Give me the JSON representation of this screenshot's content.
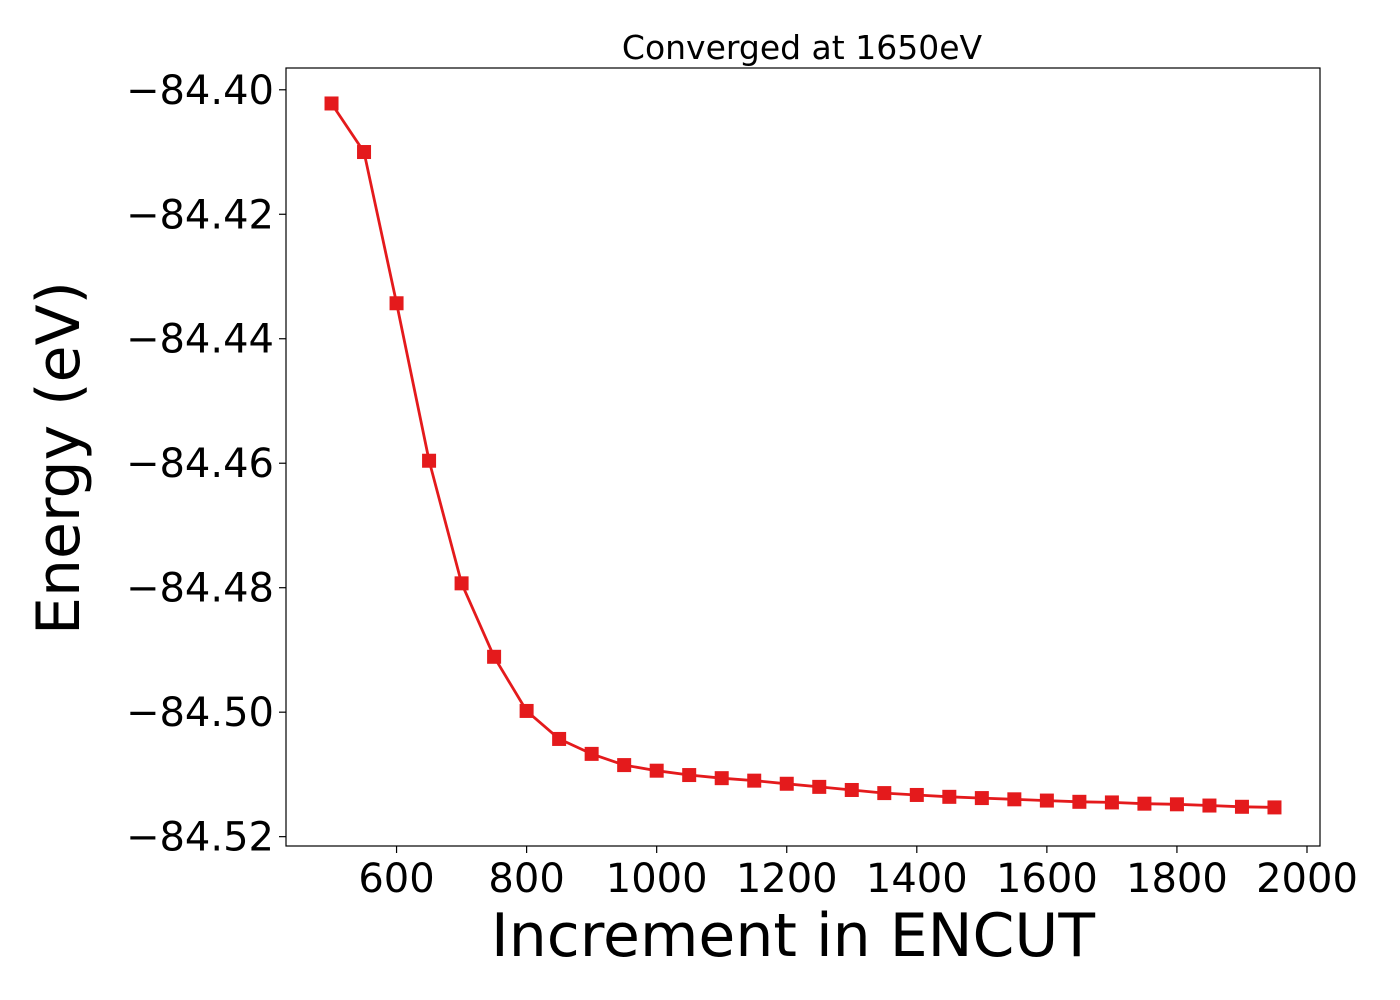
{
  "chart_data": {
    "type": "line",
    "title": "Converged at 1650eV",
    "xlabel": "Increment in ENCUT",
    "ylabel": "Energy (eV)",
    "xlim": [
      430,
      2020
    ],
    "ylim": [
      -84.5215,
      -84.3965
    ],
    "xticks": [
      600,
      800,
      1000,
      1200,
      1400,
      1600,
      1800,
      2000
    ],
    "xtick_labels": [
      "600",
      "800",
      "1000",
      "1200",
      "1400",
      "1600",
      "1800",
      "2000"
    ],
    "yticks": [
      -84.4,
      -84.42,
      -84.44,
      -84.46,
      -84.48,
      -84.5,
      -84.52
    ],
    "ytick_labels": [
      "−84.40",
      "−84.42",
      "−84.44",
      "−84.46",
      "−84.48",
      "−84.50",
      "−84.52"
    ],
    "grid": false,
    "series": [
      {
        "color": "#e41a1c",
        "marker": "square",
        "x": [
          500,
          550,
          600,
          650,
          700,
          750,
          800,
          850,
          900,
          950,
          1000,
          1050,
          1100,
          1150,
          1200,
          1250,
          1300,
          1350,
          1400,
          1450,
          1500,
          1550,
          1600,
          1650,
          1700,
          1750,
          1800,
          1850,
          1900,
          1950
        ],
        "y": [
          -84.4022,
          -84.41,
          -84.4343,
          -84.4596,
          -84.4793,
          -84.4911,
          -84.4998,
          -84.5043,
          -84.5067,
          -84.5085,
          -84.5094,
          -84.5101,
          -84.5106,
          -84.511,
          -84.5115,
          -84.512,
          -84.5125,
          -84.513,
          -84.5133,
          -84.5136,
          -84.5138,
          -84.514,
          -84.5142,
          -84.5144,
          -84.5145,
          -84.5147,
          -84.5148,
          -84.515,
          -84.5152,
          -84.5153
        ]
      }
    ]
  }
}
